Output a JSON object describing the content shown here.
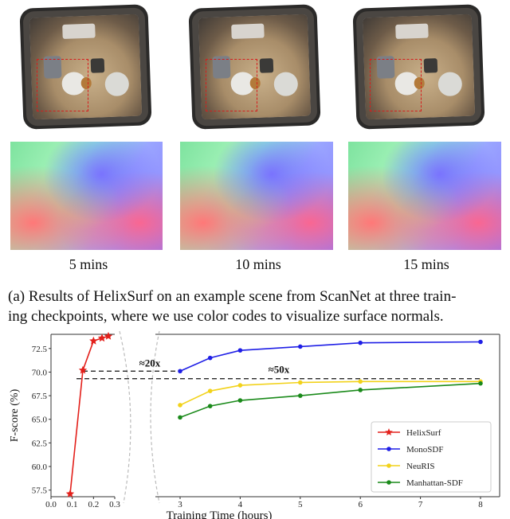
{
  "top_rows": {
    "checkpoints": [
      "5 mins",
      "10 mins",
      "15 mins"
    ]
  },
  "caption": {
    "line1": "(a) Results of HelixSurf on an example scene from ScanNet at three train-",
    "line2": "ing checkpoints, where we use color codes to visualize surface normals."
  },
  "colors": {
    "helixsurf": "#e3201b",
    "monosdf": "#1f1fe6",
    "neuris": "#f2d21a",
    "manhattan": "#1a8a1a",
    "highlight_box": "#d61d1d"
  },
  "annotations": {
    "speedup_20x": "≈20x",
    "speedup_50x": "≈50x"
  },
  "chart_data": {
    "type": "line",
    "xlabel": "Training Time (hours)",
    "ylabel": "F-score (%)",
    "y_ticks": [
      "57.5",
      "60.0",
      "62.5",
      "65.0",
      "67.5",
      "70.0",
      "72.5"
    ],
    "ylim": [
      56.8,
      74.0
    ],
    "left_panel": {
      "xlim": [
        0.0,
        0.3
      ],
      "x_ticks": [
        "0.0",
        "0.1",
        "0.2",
        "0.3"
      ]
    },
    "right_panel": {
      "xlim": [
        3,
        8
      ],
      "x_ticks": [
        "3",
        "4",
        "5",
        "6",
        "7",
        "8"
      ]
    },
    "reference_lines": [
      70.1,
      69.3
    ],
    "legend_position": "lower-right",
    "series": [
      {
        "name": "HelixSurf",
        "marker": "star",
        "x": [
          0.09,
          0.15,
          0.2,
          0.24,
          0.27
        ],
        "y": [
          57.1,
          70.2,
          73.3,
          73.6,
          73.8
        ]
      },
      {
        "name": "MonoSDF",
        "marker": "circle",
        "x": [
          3,
          3.5,
          4,
          5,
          6,
          8
        ],
        "y": [
          70.1,
          71.5,
          72.3,
          72.7,
          73.1,
          73.2
        ]
      },
      {
        "name": "NeuRIS",
        "marker": "circle",
        "x": [
          3,
          3.5,
          4,
          5,
          6,
          8
        ],
        "y": [
          66.5,
          68.0,
          68.6,
          68.9,
          69.0,
          69.0
        ]
      },
      {
        "name": "Manhattan-SDF",
        "marker": "circle",
        "x": [
          3,
          3.5,
          4,
          5,
          6,
          8
        ],
        "y": [
          65.2,
          66.4,
          67.0,
          67.5,
          68.1,
          68.8
        ]
      }
    ]
  }
}
